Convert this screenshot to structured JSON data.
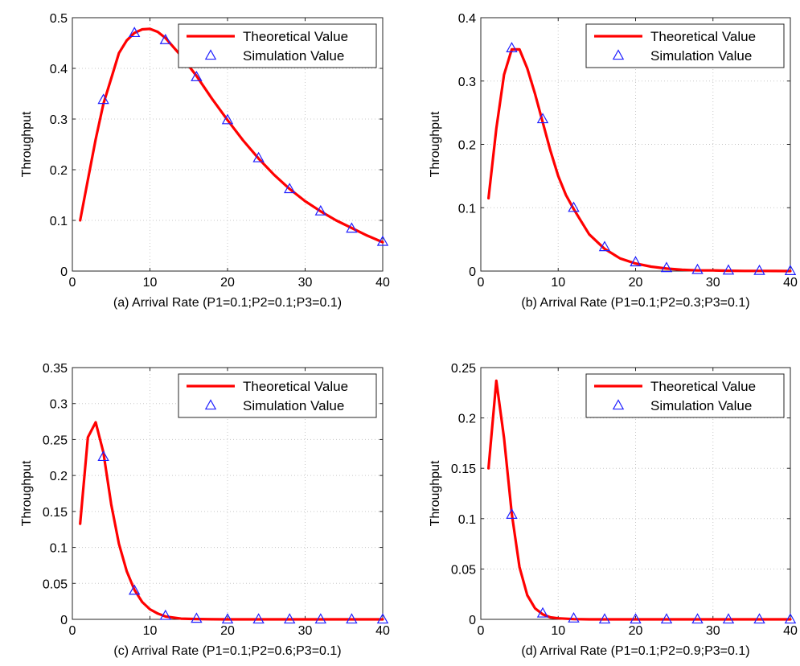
{
  "chart_data": [
    {
      "type": "line",
      "xlabel": "(a) Arrival Rate (P1=0.1;P2=0.1;P3=0.1)",
      "ylabel": "Throughput",
      "xlim": [
        0,
        40
      ],
      "ylim": [
        0,
        0.5
      ],
      "xticks": [
        {
          "value": 0,
          "label": "0"
        },
        {
          "value": 10,
          "label": "10"
        },
        {
          "value": 20,
          "label": "20"
        },
        {
          "value": 30,
          "label": "30"
        },
        {
          "value": 40,
          "label": "40"
        }
      ],
      "yticks": [
        {
          "value": 0,
          "label": "0"
        },
        {
          "value": 0.1,
          "label": "0.1"
        },
        {
          "value": 0.2,
          "label": "0.2"
        },
        {
          "value": 0.3,
          "label": "0.3"
        },
        {
          "value": 0.4,
          "label": "0.4"
        },
        {
          "value": 0.5,
          "label": "0.5"
        }
      ],
      "grid": true,
      "legend_position": "top-right",
      "series": [
        {
          "name": "Theoretical Value",
          "style": "line",
          "color": "#ff0000",
          "x": [
            1,
            2,
            3,
            4,
            5,
            6,
            7,
            8,
            9,
            10,
            11,
            12,
            14,
            16,
            18,
            20,
            22,
            24,
            26,
            28,
            30,
            32,
            34,
            36,
            38,
            40
          ],
          "y": [
            0.1,
            0.18,
            0.26,
            0.33,
            0.38,
            0.43,
            0.455,
            0.47,
            0.477,
            0.478,
            0.472,
            0.46,
            0.425,
            0.385,
            0.34,
            0.298,
            0.258,
            0.222,
            0.19,
            0.162,
            0.138,
            0.118,
            0.1,
            0.085,
            0.07,
            0.057
          ]
        },
        {
          "name": "Simulation Value",
          "style": "marker",
          "marker": "triangle",
          "color": "#1f1fff",
          "x": [
            4,
            8,
            12,
            16,
            20,
            24,
            28,
            32,
            36,
            40
          ],
          "y": [
            0.338,
            0.47,
            0.456,
            0.383,
            0.298,
            0.223,
            0.162,
            0.118,
            0.084,
            0.058
          ]
        }
      ]
    },
    {
      "type": "line",
      "xlabel": "(b) Arrival Rate (P1=0.1;P2=0.3;P3=0.1)",
      "ylabel": "Throughput",
      "xlim": [
        0,
        40
      ],
      "ylim": [
        0,
        0.4
      ],
      "xticks": [
        {
          "value": 0,
          "label": "0"
        },
        {
          "value": 10,
          "label": "10"
        },
        {
          "value": 20,
          "label": "20"
        },
        {
          "value": 30,
          "label": "30"
        },
        {
          "value": 40,
          "label": "40"
        }
      ],
      "yticks": [
        {
          "value": 0,
          "label": "0"
        },
        {
          "value": 0.1,
          "label": "0.1"
        },
        {
          "value": 0.2,
          "label": "0.2"
        },
        {
          "value": 0.3,
          "label": "0.3"
        },
        {
          "value": 0.4,
          "label": "0.4"
        }
      ],
      "grid": true,
      "legend_position": "top-right",
      "series": [
        {
          "name": "Theoretical Value",
          "style": "line",
          "color": "#ff0000",
          "x": [
            1,
            2,
            3,
            4,
            5,
            6,
            7,
            8,
            9,
            10,
            11,
            12,
            13,
            14,
            16,
            18,
            20,
            22,
            24,
            26,
            28,
            30,
            32,
            34,
            36,
            38,
            40
          ],
          "y": [
            0.115,
            0.225,
            0.31,
            0.35,
            0.35,
            0.32,
            0.28,
            0.235,
            0.19,
            0.15,
            0.12,
            0.098,
            0.078,
            0.058,
            0.035,
            0.02,
            0.012,
            0.007,
            0.004,
            0.002,
            0.001,
            0.001,
            0.0005,
            0.0003,
            0.0002,
            0.0001,
            0
          ]
        },
        {
          "name": "Simulation Value",
          "style": "marker",
          "marker": "triangle",
          "color": "#1f1fff",
          "x": [
            4,
            8,
            12,
            16,
            20,
            24,
            28,
            32,
            36,
            40
          ],
          "y": [
            0.352,
            0.24,
            0.1,
            0.038,
            0.014,
            0.005,
            0.002,
            0.001,
            0.0005,
            0.0002
          ]
        }
      ]
    },
    {
      "type": "line",
      "xlabel": "(c) Arrival Rate (P1=0.1;P2=0.6;P3=0.1)",
      "ylabel": "Throughput",
      "xlim": [
        0,
        40
      ],
      "ylim": [
        0,
        0.35
      ],
      "xticks": [
        {
          "value": 0,
          "label": "0"
        },
        {
          "value": 10,
          "label": "10"
        },
        {
          "value": 20,
          "label": "20"
        },
        {
          "value": 30,
          "label": "30"
        },
        {
          "value": 40,
          "label": "40"
        }
      ],
      "yticks": [
        {
          "value": 0,
          "label": "0"
        },
        {
          "value": 0.05,
          "label": "0.05"
        },
        {
          "value": 0.1,
          "label": "0.1"
        },
        {
          "value": 0.15,
          "label": "0.15"
        },
        {
          "value": 0.2,
          "label": "0.2"
        },
        {
          "value": 0.25,
          "label": "0.25"
        },
        {
          "value": 0.3,
          "label": "0.3"
        },
        {
          "value": 0.35,
          "label": "0.35"
        }
      ],
      "grid": true,
      "legend_position": "top-right",
      "series": [
        {
          "name": "Theoretical Value",
          "style": "line",
          "color": "#ff0000",
          "x": [
            1,
            2,
            3,
            4,
            5,
            6,
            7,
            8,
            9,
            10,
            11,
            12,
            14,
            16,
            18,
            20,
            25,
            30,
            35,
            40
          ],
          "y": [
            0.133,
            0.253,
            0.274,
            0.232,
            0.16,
            0.105,
            0.067,
            0.041,
            0.024,
            0.014,
            0.008,
            0.004,
            0.001,
            0.0004,
            0.0001,
            0,
            0,
            0,
            0,
            0
          ]
        },
        {
          "name": "Simulation Value",
          "style": "marker",
          "marker": "triangle",
          "color": "#1f1fff",
          "x": [
            4,
            8,
            12,
            16,
            20,
            24,
            28,
            32,
            36,
            40
          ],
          "y": [
            0.226,
            0.04,
            0.005,
            0.001,
            0,
            0,
            0,
            0,
            0,
            0
          ]
        }
      ]
    },
    {
      "type": "line",
      "xlabel": "(d) Arrival Rate (P1=0.1;P2=0.9;P3=0.1)",
      "ylabel": "Throughput",
      "xlim": [
        0,
        40
      ],
      "ylim": [
        0,
        0.25
      ],
      "xticks": [
        {
          "value": 0,
          "label": "0"
        },
        {
          "value": 10,
          "label": "10"
        },
        {
          "value": 20,
          "label": "20"
        },
        {
          "value": 30,
          "label": "30"
        },
        {
          "value": 40,
          "label": "40"
        }
      ],
      "yticks": [
        {
          "value": 0,
          "label": "0"
        },
        {
          "value": 0.05,
          "label": "0.05"
        },
        {
          "value": 0.1,
          "label": "0.1"
        },
        {
          "value": 0.15,
          "label": "0.15"
        },
        {
          "value": 0.2,
          "label": "0.2"
        },
        {
          "value": 0.25,
          "label": "0.25"
        }
      ],
      "grid": true,
      "legend_position": "top-right",
      "series": [
        {
          "name": "Theoretical Value",
          "style": "line",
          "color": "#ff0000",
          "x": [
            1,
            2,
            3,
            4,
            5,
            6,
            7,
            8,
            9,
            10,
            12,
            14,
            16,
            20,
            25,
            30,
            35,
            40
          ],
          "y": [
            0.15,
            0.237,
            0.18,
            0.105,
            0.052,
            0.024,
            0.011,
            0.005,
            0.002,
            0.001,
            0.0002,
            0,
            0,
            0,
            0,
            0,
            0,
            0
          ]
        },
        {
          "name": "Simulation Value",
          "style": "marker",
          "marker": "triangle",
          "color": "#1f1fff",
          "x": [
            4,
            8,
            12,
            16,
            20,
            24,
            28,
            32,
            36,
            40
          ],
          "y": [
            0.104,
            0.006,
            0.001,
            0,
            0,
            0,
            0,
            0,
            0,
            0
          ]
        }
      ]
    }
  ]
}
